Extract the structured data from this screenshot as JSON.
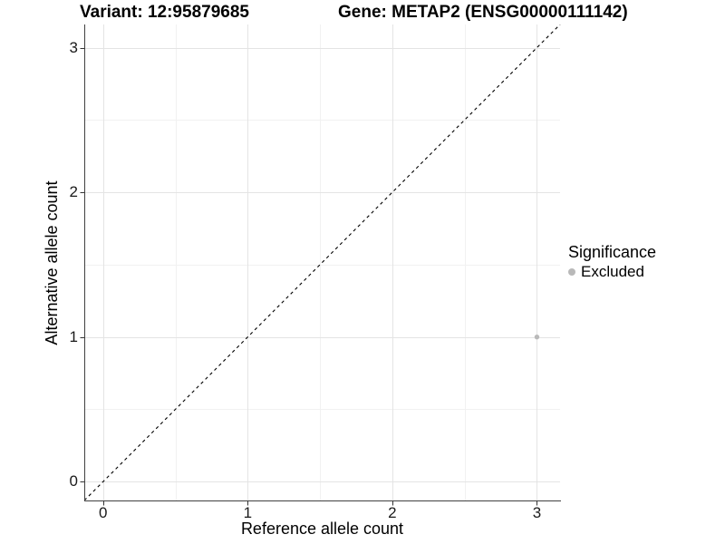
{
  "titles": {
    "variant": "Variant: 12:95879685",
    "gene": "Gene: METAP2 (ENSG00000111142)"
  },
  "chart_data": {
    "type": "scatter",
    "xlabel": "Reference allele count",
    "ylabel": "Alternative allele count",
    "xlim": [
      -0.13,
      3.16
    ],
    "ylim": [
      -0.13,
      3.16
    ],
    "xticks": [
      0,
      1,
      2,
      3
    ],
    "yticks": [
      0,
      1,
      2,
      3
    ],
    "minor_ticks": [
      0.5,
      1.5,
      2.5
    ],
    "grid": true,
    "identity_line": {
      "type": "y=x",
      "style": "dashed",
      "color": "#000000"
    },
    "series": [
      {
        "name": "Excluded",
        "color": "#b9b9b9",
        "points": [
          {
            "x": 3,
            "y": 1
          }
        ]
      }
    ],
    "legend": {
      "title": "Significance",
      "position": "right",
      "entries": [
        {
          "label": "Excluded",
          "color": "#b9b9b9"
        }
      ]
    },
    "colors": {
      "grid_major": "#e4e4e4",
      "grid_minor": "#f1f1f1",
      "axis_line": "#404040",
      "tick_mark": "#333333"
    }
  }
}
